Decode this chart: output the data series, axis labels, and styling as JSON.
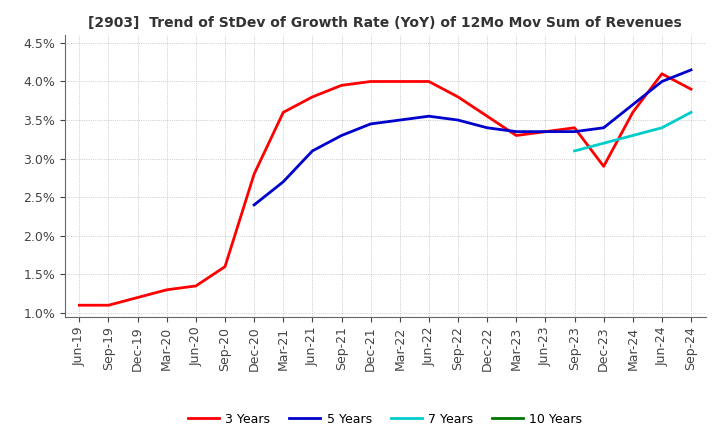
{
  "title": "[2903]  Trend of StDev of Growth Rate (YoY) of 12Mo Mov Sum of Revenues",
  "title_fontsize": 10,
  "ylim": [
    0.0095,
    0.046
  ],
  "yticks": [
    0.01,
    0.015,
    0.02,
    0.025,
    0.03,
    0.035,
    0.04,
    0.045
  ],
  "ytick_labels": [
    "1.0%",
    "1.5%",
    "2.0%",
    "2.5%",
    "3.0%",
    "3.5%",
    "4.0%",
    "4.5%"
  ],
  "background_color": "#ffffff",
  "grid_color": "#aaaaaa",
  "x_labels": [
    "Jun-19",
    "Sep-19",
    "Dec-19",
    "Mar-20",
    "Jun-20",
    "Sep-20",
    "Dec-20",
    "Mar-21",
    "Jun-21",
    "Sep-21",
    "Dec-21",
    "Mar-22",
    "Jun-22",
    "Sep-22",
    "Dec-22",
    "Mar-23",
    "Jun-23",
    "Sep-23",
    "Dec-23",
    "Mar-24",
    "Jun-24",
    "Sep-24"
  ],
  "y_3years": [
    0.011,
    0.011,
    0.012,
    0.013,
    0.0135,
    0.016,
    0.028,
    0.036,
    0.038,
    0.0395,
    0.04,
    0.04,
    0.04,
    0.038,
    0.0355,
    0.033,
    0.0335,
    0.034,
    0.029,
    0.036,
    0.041,
    0.039
  ],
  "y_5years": [
    null,
    null,
    null,
    null,
    null,
    null,
    0.024,
    0.027,
    0.031,
    0.033,
    0.0345,
    0.035,
    0.0355,
    0.035,
    0.034,
    0.0335,
    0.0335,
    0.0335,
    0.034,
    0.037,
    0.04,
    0.0415
  ],
  "y_7years": [
    null,
    null,
    null,
    null,
    null,
    null,
    null,
    null,
    null,
    null,
    null,
    null,
    null,
    null,
    null,
    null,
    null,
    0.031,
    0.032,
    0.033,
    0.034,
    0.036
  ],
  "y_10years": [],
  "series_3years_color": "#ff0000",
  "series_5years_color": "#0000cc",
  "series_7years_color": "#00cccc",
  "series_10years_color": "#007700",
  "linewidth": 2.0
}
